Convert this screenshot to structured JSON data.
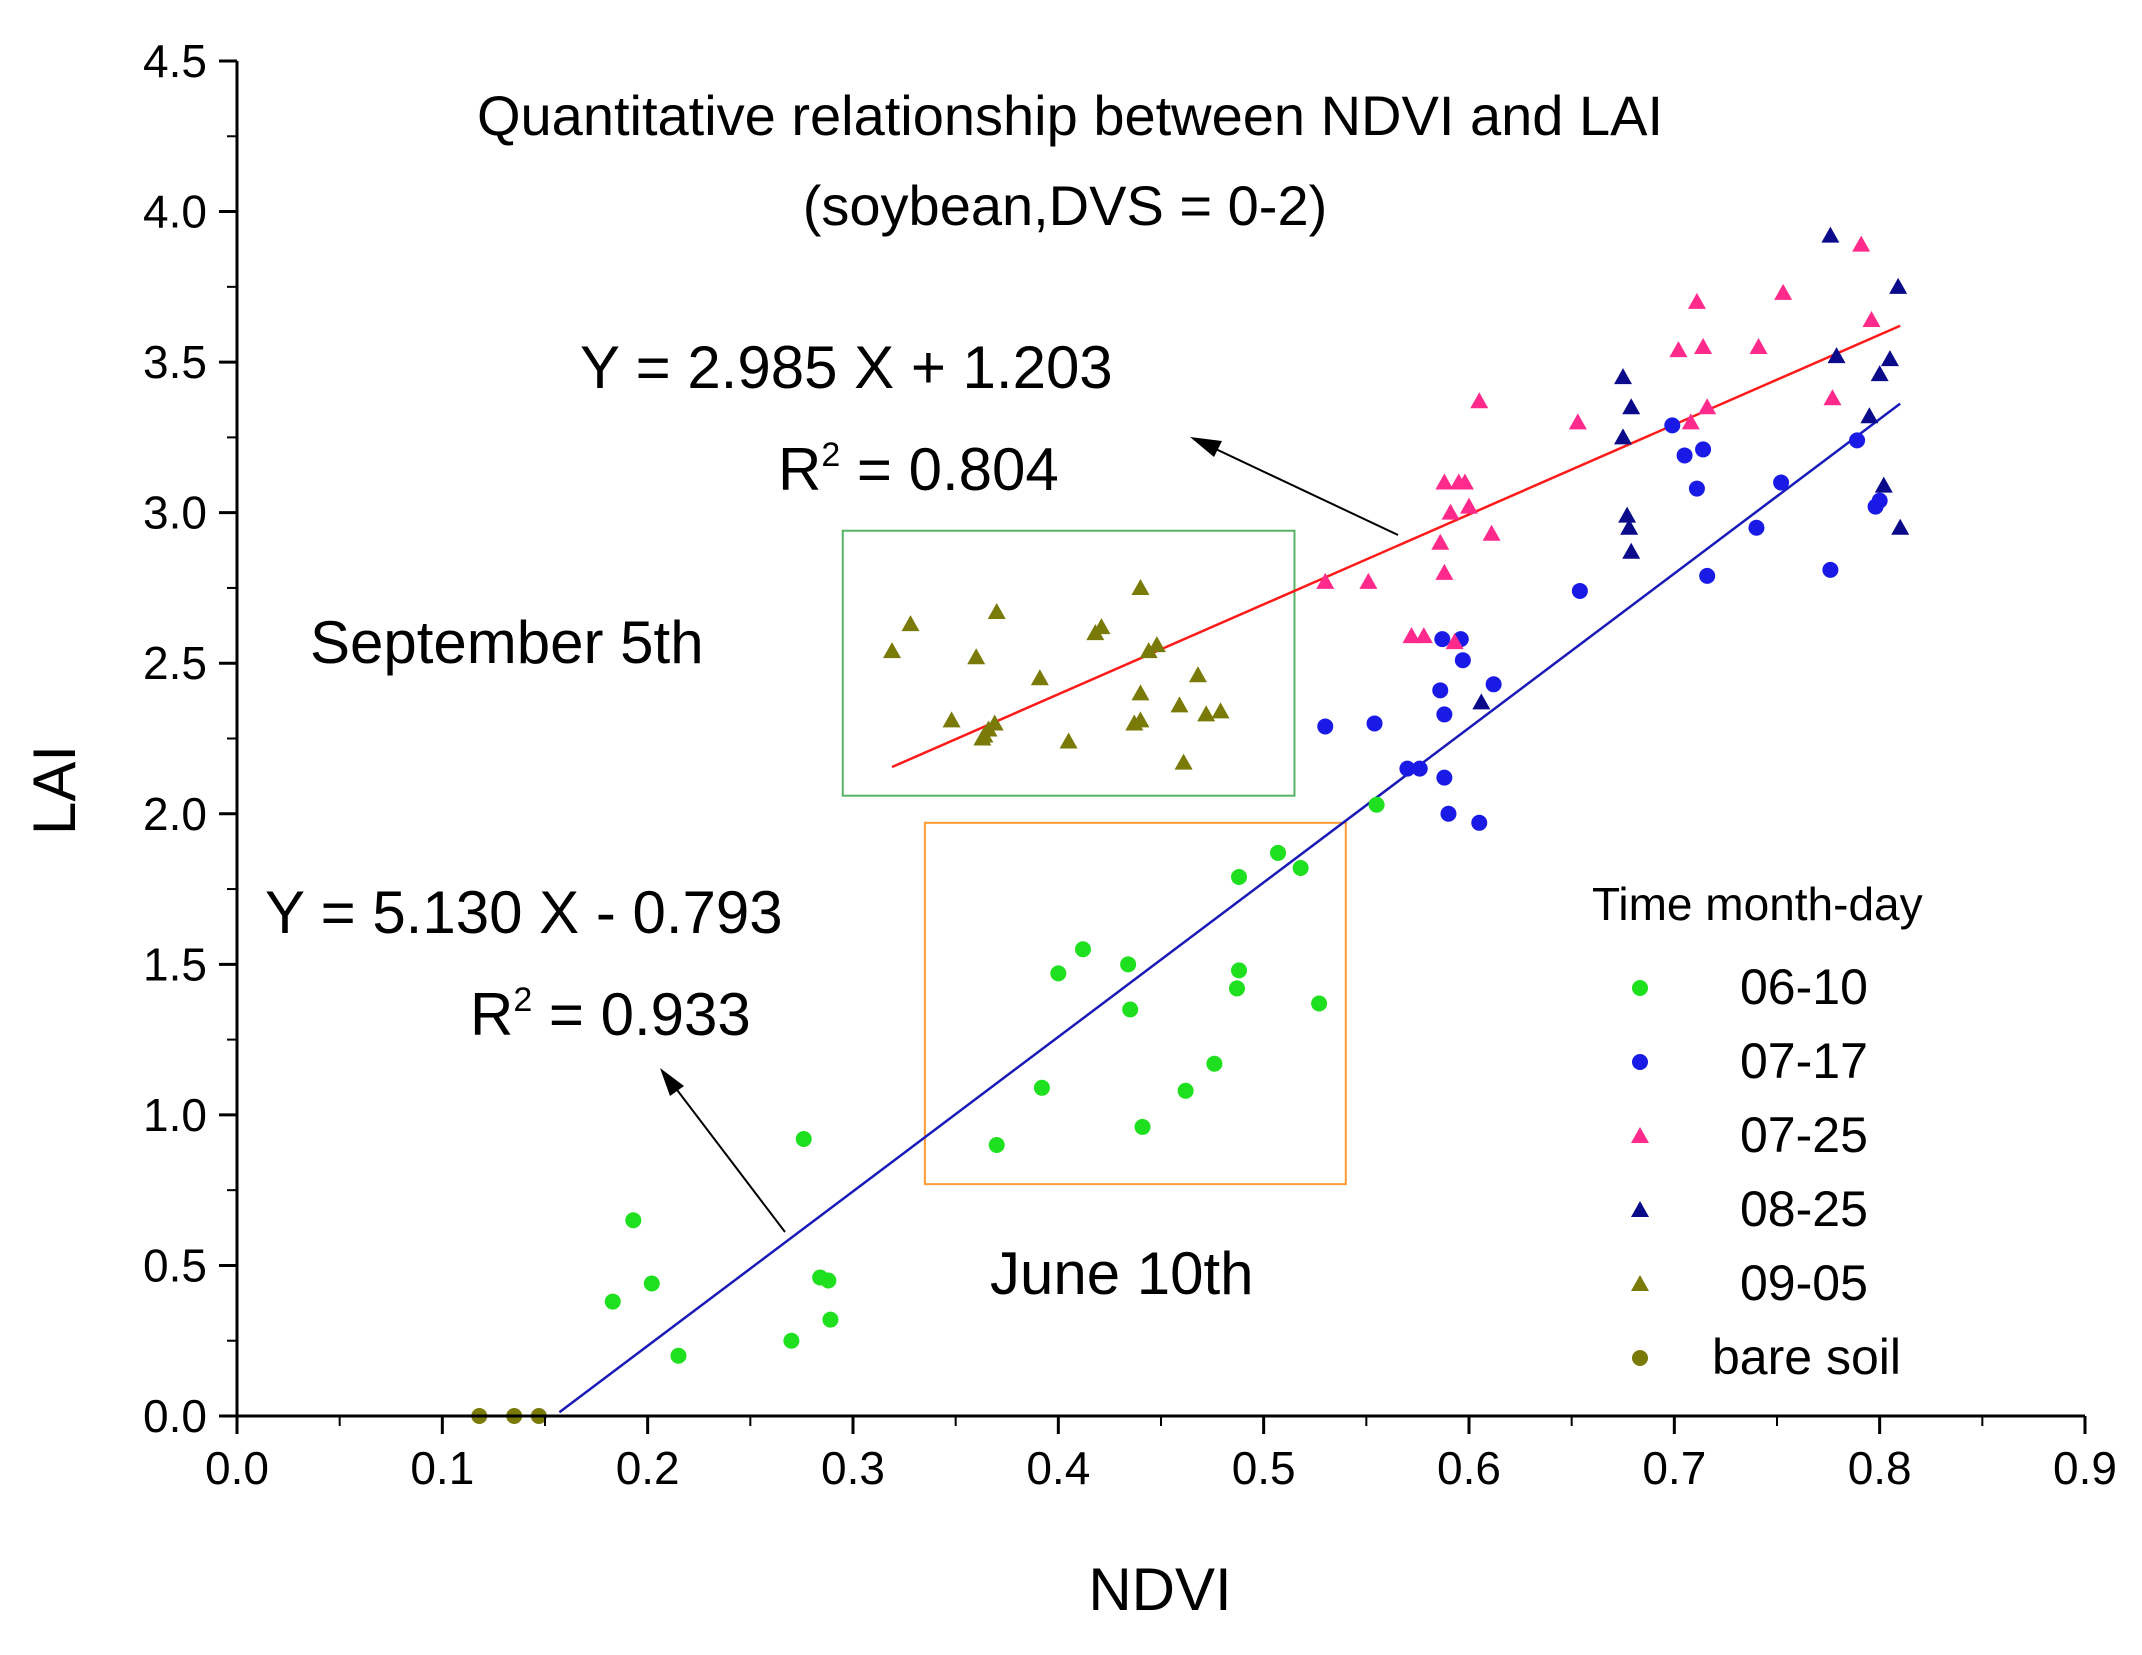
{
  "chart_data": {
    "type": "scatter",
    "title": "Quantitative relationship between NDVI and LAI",
    "subtitle": "(soybean,DVS = 0-2)",
    "xlabel": "NDVI",
    "ylabel": "LAI",
    "xlim": [
      0.0,
      0.9
    ],
    "ylim": [
      0.0,
      4.5
    ],
    "x_ticks": [
      "0.0",
      "0.1",
      "0.2",
      "0.3",
      "0.4",
      "0.5",
      "0.6",
      "0.7",
      "0.8",
      "0.9"
    ],
    "y_ticks": [
      "0.0",
      "0.5",
      "1.0",
      "1.5",
      "2.0",
      "2.5",
      "3.0",
      "3.5",
      "4.0",
      "4.5"
    ],
    "grid": false,
    "legend": {
      "title": "Time month-day",
      "position": "bottom-right"
    },
    "series": [
      {
        "name": "06-10",
        "marker": "circle",
        "color": "#1ee01e",
        "points": [
          [
            0.183,
            0.38
          ],
          [
            0.193,
            0.65
          ],
          [
            0.202,
            0.44
          ],
          [
            0.215,
            0.2
          ],
          [
            0.27,
            0.25
          ],
          [
            0.276,
            0.92
          ],
          [
            0.284,
            0.46
          ],
          [
            0.288,
            0.45
          ],
          [
            0.289,
            0.32
          ],
          [
            0.37,
            0.9
          ],
          [
            0.392,
            1.09
          ],
          [
            0.4,
            1.47
          ],
          [
            0.412,
            1.55
          ],
          [
            0.434,
            1.5
          ],
          [
            0.435,
            1.35
          ],
          [
            0.441,
            0.96
          ],
          [
            0.462,
            1.08
          ],
          [
            0.476,
            1.17
          ],
          [
            0.487,
            1.42
          ],
          [
            0.488,
            1.48
          ],
          [
            0.488,
            1.79
          ],
          [
            0.507,
            1.87
          ],
          [
            0.518,
            1.82
          ],
          [
            0.527,
            1.37
          ],
          [
            0.555,
            2.03
          ]
        ]
      },
      {
        "name": "07-17",
        "marker": "circle",
        "color": "#1a1ae6",
        "points": [
          [
            0.53,
            2.29
          ],
          [
            0.554,
            2.3
          ],
          [
            0.57,
            2.15
          ],
          [
            0.576,
            2.15
          ],
          [
            0.586,
            2.41
          ],
          [
            0.587,
            2.58
          ],
          [
            0.588,
            2.33
          ],
          [
            0.588,
            2.12
          ],
          [
            0.59,
            2.0
          ],
          [
            0.596,
            2.58
          ],
          [
            0.597,
            2.51
          ],
          [
            0.605,
            1.97
          ],
          [
            0.612,
            2.43
          ],
          [
            0.654,
            2.74
          ],
          [
            0.699,
            3.29
          ],
          [
            0.705,
            3.19
          ],
          [
            0.711,
            3.08
          ],
          [
            0.714,
            3.21
          ],
          [
            0.716,
            2.79
          ],
          [
            0.74,
            2.95
          ],
          [
            0.752,
            3.1
          ],
          [
            0.776,
            2.81
          ],
          [
            0.789,
            3.24
          ],
          [
            0.798,
            3.02
          ],
          [
            0.8,
            3.04
          ]
        ]
      },
      {
        "name": "07-25",
        "marker": "triangle",
        "color": "#ff2a8c",
        "points": [
          [
            0.53,
            2.77
          ],
          [
            0.551,
            2.77
          ],
          [
            0.572,
            2.59
          ],
          [
            0.578,
            2.59
          ],
          [
            0.586,
            2.9
          ],
          [
            0.588,
            2.8
          ],
          [
            0.588,
            3.1
          ],
          [
            0.591,
            3.0
          ],
          [
            0.593,
            2.57
          ],
          [
            0.595,
            3.1
          ],
          [
            0.598,
            3.1
          ],
          [
            0.6,
            3.02
          ],
          [
            0.605,
            3.37
          ],
          [
            0.611,
            2.93
          ],
          [
            0.653,
            3.3
          ],
          [
            0.702,
            3.54
          ],
          [
            0.708,
            3.3
          ],
          [
            0.711,
            3.7
          ],
          [
            0.714,
            3.55
          ],
          [
            0.716,
            3.35
          ],
          [
            0.741,
            3.55
          ],
          [
            0.753,
            3.73
          ],
          [
            0.777,
            3.38
          ],
          [
            0.791,
            3.89
          ],
          [
            0.796,
            3.64
          ]
        ]
      },
      {
        "name": "08-25",
        "marker": "triangle",
        "color": "#0a0a8a",
        "points": [
          [
            0.606,
            2.37
          ],
          [
            0.675,
            3.45
          ],
          [
            0.675,
            3.25
          ],
          [
            0.677,
            2.99
          ],
          [
            0.678,
            2.95
          ],
          [
            0.679,
            3.35
          ],
          [
            0.679,
            2.87
          ],
          [
            0.776,
            3.92
          ],
          [
            0.779,
            3.52
          ],
          [
            0.795,
            3.32
          ],
          [
            0.8,
            3.46
          ],
          [
            0.802,
            3.09
          ],
          [
            0.805,
            3.51
          ],
          [
            0.809,
            3.75
          ],
          [
            0.81,
            2.95
          ]
        ]
      },
      {
        "name": "09-05",
        "marker": "triangle",
        "color": "#7a7a08",
        "points": [
          [
            0.319,
            2.54
          ],
          [
            0.328,
            2.63
          ],
          [
            0.348,
            2.31
          ],
          [
            0.36,
            2.52
          ],
          [
            0.363,
            2.25
          ],
          [
            0.364,
            2.26
          ],
          [
            0.366,
            2.28
          ],
          [
            0.369,
            2.3
          ],
          [
            0.37,
            2.67
          ],
          [
            0.391,
            2.45
          ],
          [
            0.405,
            2.24
          ],
          [
            0.418,
            2.6
          ],
          [
            0.421,
            2.62
          ],
          [
            0.437,
            2.3
          ],
          [
            0.44,
            2.75
          ],
          [
            0.44,
            2.31
          ],
          [
            0.44,
            2.4
          ],
          [
            0.444,
            2.54
          ],
          [
            0.448,
            2.56
          ],
          [
            0.459,
            2.36
          ],
          [
            0.461,
            2.17
          ],
          [
            0.468,
            2.46
          ],
          [
            0.472,
            2.33
          ],
          [
            0.479,
            2.34
          ]
        ]
      },
      {
        "name": "bare soil",
        "marker": "circle",
        "color": "#7a7a08",
        "points": [
          [
            0.118,
            0.0
          ],
          [
            0.135,
            0.0
          ],
          [
            0.147,
            0.0
          ]
        ]
      }
    ],
    "fits": [
      {
        "name": "fit-red",
        "color": "#ff1a1a",
        "slope": 2.985,
        "intercept": 1.203,
        "x_range": [
          0.319,
          0.81
        ],
        "equation": "Y = 2.985 X + 1.203",
        "r2_prefix": "R",
        "r2_exp": "2",
        "r2_value": " =  0.804"
      },
      {
        "name": "fit-blue",
        "color": "#1a1ab8",
        "slope": 5.13,
        "intercept": -0.793,
        "x_range": [
          0.157,
          0.81
        ],
        "equation": "Y = 5.130 X - 0.793",
        "r2_prefix": "R",
        "r2_exp": "2",
        "r2_value": " =  0.933"
      }
    ],
    "annotations": [
      {
        "name": "region-september",
        "label": "September 5th",
        "box_x": [
          0.295,
          0.515
        ],
        "box_y": [
          2.06,
          2.94
        ],
        "box_color": "#54b464"
      },
      {
        "name": "region-june",
        "label": "June 10th",
        "box_x": [
          0.335,
          0.54
        ],
        "box_y": [
          0.77,
          1.97
        ],
        "box_color": "#ff9933"
      }
    ]
  }
}
